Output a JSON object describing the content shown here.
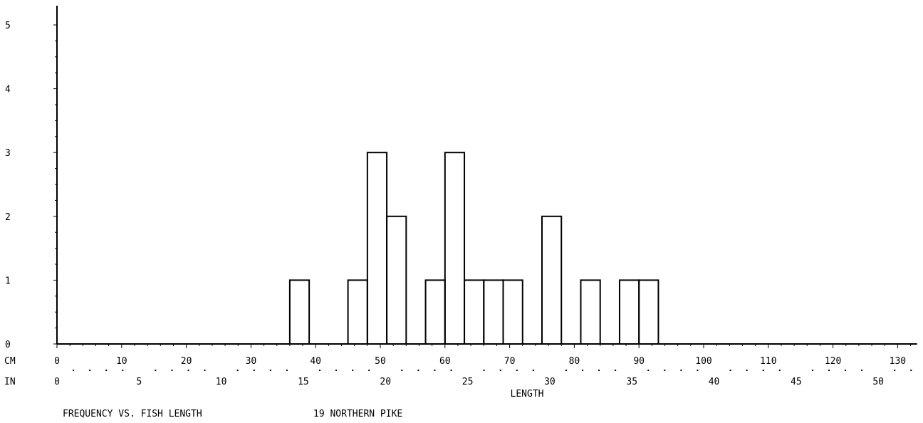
{
  "chart_data": {
    "type": "histogram",
    "title": "FREQUENCY VS. FISH LENGTH",
    "subtitle": "19 NORTHERN PIKE",
    "xlabel": "LENGTH",
    "cm_axis_label": "CM",
    "in_axis_label": "IN",
    "y_ticks": [
      0,
      1,
      2,
      3,
      4,
      5
    ],
    "ylim": [
      0,
      5
    ],
    "xlim_cm": [
      0,
      133
    ],
    "cm_ticks": [
      0,
      10,
      20,
      30,
      40,
      50,
      60,
      70,
      80,
      90,
      100,
      110,
      120,
      130
    ],
    "in_ticks": [
      0,
      5,
      10,
      15,
      20,
      25,
      30,
      35,
      40,
      45,
      50
    ],
    "bin_width_cm": 3,
    "bins": [
      {
        "x0": 36,
        "x1": 39,
        "count": 1
      },
      {
        "x0": 45,
        "x1": 48,
        "count": 1
      },
      {
        "x0": 48,
        "x1": 51,
        "count": 3
      },
      {
        "x0": 51,
        "x1": 54,
        "count": 2
      },
      {
        "x0": 57,
        "x1": 60,
        "count": 1
      },
      {
        "x0": 60,
        "x1": 63,
        "count": 3
      },
      {
        "x0": 63,
        "x1": 66,
        "count": 1
      },
      {
        "x0": 66,
        "x1": 69,
        "count": 1
      },
      {
        "x0": 69,
        "x1": 72,
        "count": 1
      },
      {
        "x0": 75,
        "x1": 78,
        "count": 2
      },
      {
        "x0": 81,
        "x1": 84,
        "count": 1
      },
      {
        "x0": 87,
        "x1": 90,
        "count": 1
      },
      {
        "x0": 90,
        "x1": 93,
        "count": 1
      }
    ],
    "grid": false,
    "legend": "none"
  }
}
